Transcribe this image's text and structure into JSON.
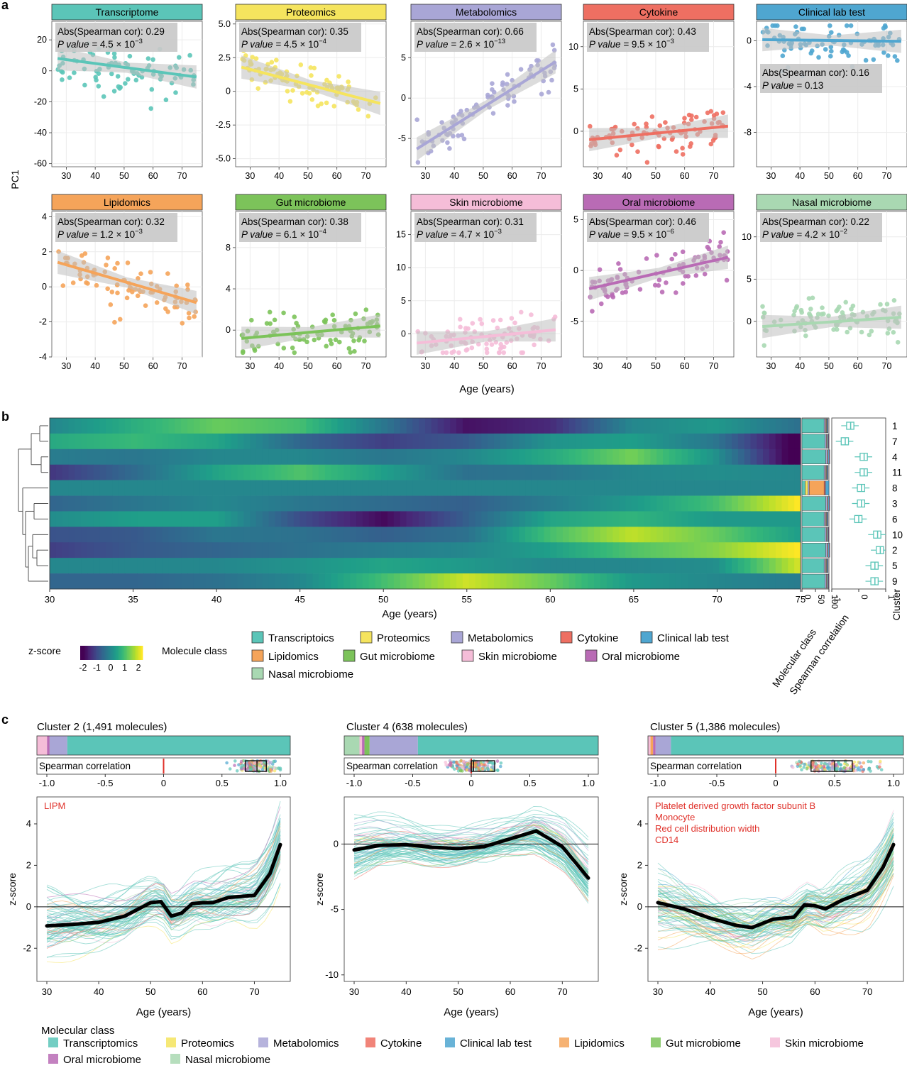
{
  "panel_labels": {
    "a": "a",
    "b": "b",
    "c": "c"
  },
  "colors": {
    "Transcriptome": "#5BC5B8",
    "Proteomics": "#F5E45E",
    "Metabolomics": "#A9A6D6",
    "Cytokine": "#EE6F62",
    "Clinical lab test": "#4FA6D0",
    "Lipidomics": "#F5A45A",
    "Gut microbiome": "#7CC35A",
    "Skin microbiome": "#F5BDD8",
    "Oral microbiome": "#B96BB5",
    "Nasal microbiome": "#A9D8B2",
    "band": "#BFBFBF",
    "annotation_red": "#E0322B"
  },
  "panel_a": {
    "y_axis_label": "PC1",
    "x_axis_label": "Age (years)",
    "stat_label": "Abs(Spearman cor): ",
    "pvalue_label": "P value = ",
    "panels": [
      {
        "title": "Transcriptome",
        "cor": "0.29",
        "p": "4.5 × 10",
        "p_exp": "−3",
        "xticks": [
          30,
          40,
          50,
          60,
          70
        ],
        "yticks": [
          20,
          0,
          -20,
          -40,
          -60
        ],
        "ylim": [
          -62,
          32
        ],
        "fit": [
          8,
          -4
        ]
      },
      {
        "title": "Proteomics",
        "cor": "0.35",
        "p": "4.5 × 10",
        "p_exp": "−4",
        "xticks": [
          30,
          40,
          50,
          60,
          70
        ],
        "yticks": [
          "5.0",
          "2.5",
          "0",
          "-2.5",
          "-5.0"
        ],
        "ylim": [
          -5.6,
          5.2
        ],
        "fit": [
          1.8,
          -0.9
        ]
      },
      {
        "title": "Metabolomics",
        "cor": "0.66",
        "p": "2.6 × 10",
        "p_exp": "−13",
        "xticks": [
          30,
          40,
          50,
          60,
          70
        ],
        "yticks": [
          5,
          0,
          -5
        ],
        "ylim": [
          -8.5,
          9.5
        ],
        "fit": [
          -6.3,
          4.5
        ]
      },
      {
        "title": "Cytokine",
        "cor": "0.43",
        "p": "9.5 × 10",
        "p_exp": "−3",
        "xticks": [
          30,
          40,
          50,
          60,
          70
        ],
        "yticks": [
          10,
          5,
          0
        ],
        "ylim": [
          -4.2,
          13
        ],
        "fit": [
          -1.0,
          0.6
        ]
      },
      {
        "title": "Clinical lab test",
        "cor": "0.16",
        "p": "0.13",
        "p_exp": "",
        "xticks": [
          30,
          40,
          50,
          60,
          70
        ],
        "yticks": [
          0,
          -4,
          -8
        ],
        "ylim": [
          -11,
          1.7
        ],
        "fit": [
          0.1,
          -0.05
        ],
        "stat_low": true
      },
      {
        "title": "Lipidomics",
        "cor": "0.32",
        "p": "1.2 × 10",
        "p_exp": "−3",
        "xticks": [
          30,
          40,
          50,
          60,
          70
        ],
        "yticks": [
          4,
          2,
          0,
          -2,
          -4
        ],
        "ylim": [
          -4,
          4.3
        ],
        "fit": [
          1.4,
          -0.9
        ]
      },
      {
        "title": "Gut microbiome",
        "cor": "0.38",
        "p": "6.1 × 10",
        "p_exp": "−4",
        "xticks": [
          30,
          40,
          50,
          60,
          70
        ],
        "yticks": [
          8,
          4,
          0
        ],
        "ylim": [
          -2.6,
          11.5
        ],
        "fit": [
          -0.8,
          0.4
        ]
      },
      {
        "title": "Skin microbiome",
        "cor": "0.31",
        "p": "4.7 × 10",
        "p_exp": "−3",
        "xticks": [
          30,
          40,
          50,
          60,
          70
        ],
        "yticks": [
          15,
          10,
          5,
          0
        ],
        "ylim": [
          -3.5,
          18.5
        ],
        "fit": [
          -1.4,
          0.6
        ]
      },
      {
        "title": "Oral microbiome",
        "cor": "0.46",
        "p": "9.5 × 10",
        "p_exp": "−6",
        "xticks": [
          30,
          40,
          50,
          60,
          70
        ],
        "yticks": [
          5,
          0,
          -5
        ],
        "ylim": [
          -8.5,
          5.8
        ],
        "fit": [
          -1.8,
          1.3
        ]
      },
      {
        "title": "Nasal microbiome",
        "cor": "0.22",
        "p": "4.2 × 10",
        "p_exp": "−2",
        "xticks": [
          30,
          40,
          50,
          60,
          70
        ],
        "yticks": [
          10,
          5,
          0
        ],
        "ylim": [
          -4.2,
          13
        ],
        "fit": [
          -0.6,
          0.5
        ]
      }
    ]
  },
  "panel_b": {
    "x_axis_label": "Age (years)",
    "xticks": [
      30,
      35,
      40,
      45,
      50,
      55,
      60,
      65,
      70,
      75
    ],
    "row_clusters": [
      1,
      7,
      4,
      11,
      8,
      3,
      6,
      10,
      2,
      5,
      9
    ],
    "cluster_axis_label": "Cluster",
    "molclass_axis_label": "Molecular class",
    "spearman_axis_label": "Spearman correlation",
    "molclass_ticks": [
      "0",
      "50",
      "100"
    ],
    "spearman_ticks": [
      "-1",
      "0",
      "1"
    ],
    "zscore_label": "z-score",
    "zscore_ticks": [
      "-2",
      "-1",
      "0",
      "1",
      "2"
    ],
    "molecule_class_label": "Molecule class",
    "legend": [
      "Transcriptoics",
      "Proteomics",
      "Metabolomics",
      "Cytokine",
      "Clinical lab test",
      "Lipidomics",
      "Gut microbiome",
      "Skin microbiome",
      "Oral microbiome",
      "Nasal microbiome"
    ]
  },
  "panel_c": {
    "spearman_label": "Spearman correlation",
    "spearman_ticks": [
      "-1.0",
      "-0.5",
      "0",
      "0.5",
      "1.0"
    ],
    "x_axis_label": "Age (years)",
    "y_axis_label": "z-score",
    "xticks": [
      30,
      40,
      50,
      60,
      70
    ],
    "legend_title": "Molecular class",
    "legend": [
      "Transcriptomics",
      "Proteomics",
      "Metabolomics",
      "Cytokine",
      "Clinical lab test",
      "Lipidomics",
      "Gut microbiome",
      "Skin microbiome",
      "Oral microbiome",
      "Nasal microbiome"
    ],
    "panels": [
      {
        "title": "Cluster 2 (1,491 molecules)",
        "annotations": [
          "LIPM"
        ],
        "yticks": [
          4,
          2,
          0,
          -2
        ],
        "ylim": [
          -3.6,
          5.3
        ]
      },
      {
        "title": "Cluster 4 (638 molecules)",
        "annotations": [],
        "yticks": [
          0,
          -5,
          -10
        ],
        "ylim": [
          -10.5,
          3.6
        ]
      },
      {
        "title": "Cluster 5 (1,386 molecules)",
        "annotations": [
          "Platelet derived growth factor subunit B",
          "Monocyte",
          "Red cell distribution width",
          "CD14"
        ],
        "yticks": [
          4,
          2,
          0,
          -2
        ],
        "ylim": [
          -3.6,
          5.3
        ]
      }
    ]
  },
  "chart_data": [
    {
      "type": "scatter",
      "panel": "a",
      "description_series": [
        "Transcriptome",
        "Proteomics",
        "Metabolomics",
        "Cytokine",
        "Clinical lab test",
        "Lipidomics",
        "Gut microbiome",
        "Skin microbiome",
        "Oral microbiome",
        "Nasal microbiome"
      ],
      "xlabel": "Age (years)",
      "ylabel": "PC1",
      "xlim": [
        25,
        77
      ],
      "spearman_abs": [
        0.29,
        0.35,
        0.66,
        0.43,
        0.16,
        0.32,
        0.38,
        0.31,
        0.46,
        0.22
      ],
      "p_values": [
        "4.5e-3",
        "4.5e-4",
        "2.6e-13",
        "9.5e-3",
        "0.13",
        "1.2e-3",
        "6.1e-4",
        "4.7e-3",
        "9.5e-6",
        "4.2e-2"
      ]
    },
    {
      "type": "heatmap",
      "panel": "b",
      "xlabel": "Age (years)",
      "x": [
        30,
        35,
        40,
        45,
        50,
        55,
        60,
        65,
        70,
        75
      ],
      "rows": [
        1,
        7,
        4,
        11,
        8,
        3,
        6,
        10,
        2,
        5,
        9
      ],
      "zlim": [
        -2,
        2.3
      ],
      "values": [
        [
          0.0,
          0.7,
          1.3,
          1.0,
          -0.3,
          -1.8,
          -1.5,
          0.0,
          0.3,
          -0.4
        ],
        [
          0.6,
          0.9,
          0.5,
          -0.6,
          -1.2,
          -0.8,
          0.2,
          0.4,
          -0.3,
          -2.2
        ],
        [
          -0.2,
          -0.3,
          0.0,
          0.0,
          -0.3,
          0.0,
          0.6,
          1.4,
          0.2,
          -2.3
        ],
        [
          -1.3,
          -0.5,
          0.5,
          1.1,
          0.4,
          -0.4,
          -0.3,
          0.0,
          0.1,
          0.0
        ],
        [
          0.0,
          0.0,
          0.0,
          0.0,
          0.0,
          0.0,
          0.0,
          0.0,
          0.0,
          0.0
        ],
        [
          -0.6,
          -0.3,
          0.0,
          -0.3,
          -0.5,
          -0.7,
          -0.2,
          0.3,
          1.0,
          2.3
        ],
        [
          0.1,
          0.4,
          0.4,
          -1.0,
          -1.9,
          -0.7,
          0.5,
          0.8,
          0.3,
          0.3
        ],
        [
          -0.9,
          -0.8,
          -0.3,
          -0.4,
          -0.7,
          -0.4,
          1.0,
          1.9,
          1.3,
          0.4
        ],
        [
          -1.2,
          -0.8,
          -0.6,
          -0.4,
          -0.2,
          0.0,
          0.4,
          1.1,
          1.5,
          2.3
        ],
        [
          0.0,
          0.0,
          0.0,
          0.2,
          0.5,
          0.3,
          0.0,
          0.0,
          0.1,
          2.0
        ],
        [
          -0.6,
          -0.6,
          -0.4,
          0.0,
          1.0,
          2.0,
          1.3,
          0.3,
          0.0,
          -0.2
        ]
      ],
      "spearman_median": [
        -0.3,
        -0.5,
        0.2,
        0.2,
        0.1,
        0.1,
        0.0,
        0.7,
        0.8,
        0.6,
        0.6
      ]
    },
    {
      "type": "line",
      "panel": "c",
      "xlabel": "Age (years)",
      "ylabel": "z-score",
      "series": [
        {
          "name": "Cluster 2 (1,491 molecules)",
          "x": [
            30,
            35,
            40,
            45,
            50,
            52,
            54,
            56,
            58,
            60,
            62,
            65,
            70,
            73,
            75
          ],
          "values": [
            -0.92,
            -0.85,
            -0.75,
            -0.45,
            0.2,
            0.25,
            -0.45,
            -0.3,
            0.15,
            0.2,
            0.2,
            0.45,
            0.55,
            1.6,
            3.0
          ]
        },
        {
          "name": "Cluster 4 (638 molecules)",
          "x": [
            30,
            35,
            40,
            45,
            50,
            55,
            60,
            65,
            70,
            75
          ],
          "values": [
            -0.45,
            -0.1,
            -0.05,
            -0.25,
            -0.35,
            -0.2,
            0.4,
            1.0,
            -0.2,
            -2.6
          ]
        },
        {
          "name": "Cluster 5 (1,386 molecules)",
          "x": [
            30,
            35,
            40,
            45,
            48,
            52,
            56,
            58,
            60,
            62,
            65,
            70,
            73,
            75
          ],
          "values": [
            0.2,
            -0.1,
            -0.55,
            -0.9,
            -1.0,
            -0.6,
            -0.5,
            0.1,
            0.05,
            -0.1,
            0.3,
            0.8,
            1.9,
            3.0
          ]
        }
      ],
      "spearman_box": [
        [
          0.7,
          0.8,
          0.88
        ],
        [
          0.0,
          0.02,
          0.2
        ],
        [
          0.3,
          0.5,
          0.65
        ]
      ]
    }
  ]
}
